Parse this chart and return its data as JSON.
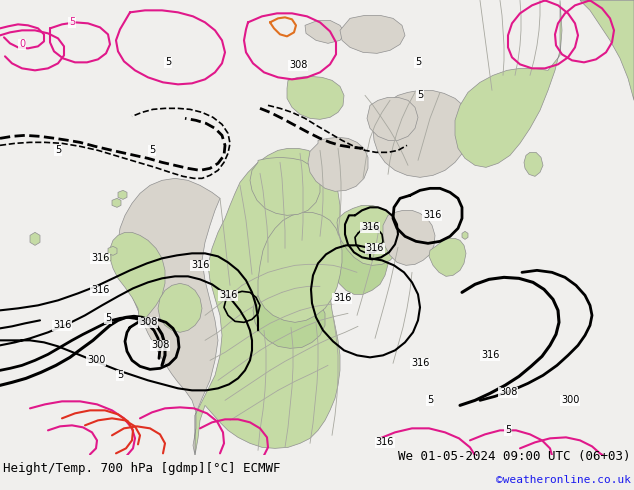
{
  "title_left": "Height/Temp. 700 hPa [gdmp][°C] ECMWF",
  "title_right": "We 01-05-2024 09:00 UTC (06+03)",
  "copyright": "©weatheronline.co.uk",
  "fig_width": 6.34,
  "fig_height": 4.9,
  "dpi": 100,
  "bg_ocean": "#d0cec8",
  "bg_land_green": "#c8dba8",
  "bg_land_light": "#dce8c0",
  "border_color": "#a0a0a0",
  "title_fontsize": 9,
  "copyright_fontsize": 8,
  "label_fontsize": 7
}
